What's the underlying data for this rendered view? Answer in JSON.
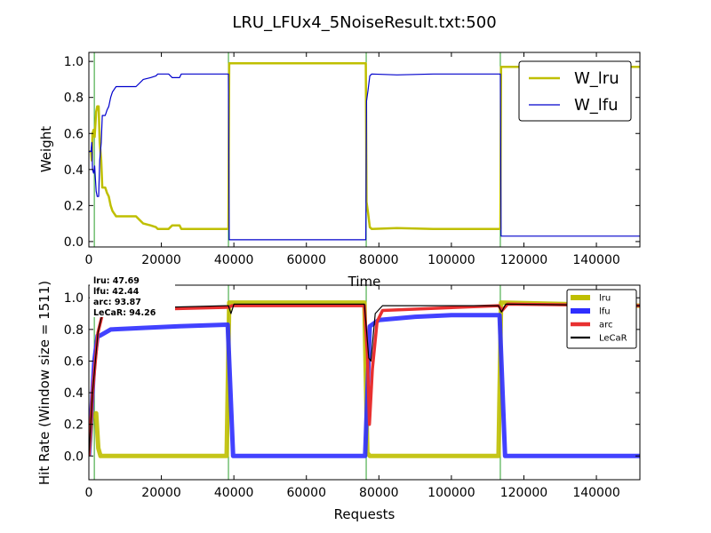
{
  "figure_title": "LRU_LFUx4_5NoiseResult.txt:500",
  "chart_data": [
    {
      "type": "line",
      "xlabel": "Time",
      "ylabel": "Weight",
      "xlim": [
        0,
        152000
      ],
      "ylim": [
        -0.03,
        1.05
      ],
      "xticks": [
        0,
        20000,
        40000,
        60000,
        80000,
        100000,
        120000,
        140000
      ],
      "xtick_labels": [
        "0",
        "20000",
        "40000",
        "60000",
        "80000",
        "100000",
        "120000",
        "140000"
      ],
      "yticks": [
        0.0,
        0.2,
        0.4,
        0.6,
        0.8,
        1.0
      ],
      "ytick_labels": [
        "0.0",
        "0.2",
        "0.4",
        "0.6",
        "0.8",
        "1.0"
      ],
      "grid": false,
      "legend_position": "top-right",
      "vlines": [
        1500,
        38500,
        76500,
        113500
      ],
      "vline_color": "#2ca02c",
      "series": [
        {
          "name": "W_lru",
          "color": "#bfbf00",
          "width": 2.5,
          "points": [
            [
              0,
              0.5
            ],
            [
              600,
              0.5
            ],
            [
              800,
              0.45
            ],
            [
              1000,
              0.6
            ],
            [
              1300,
              0.62
            ],
            [
              1600,
              0.58
            ],
            [
              2000,
              0.72
            ],
            [
              2300,
              0.75
            ],
            [
              2700,
              0.75
            ],
            [
              3000,
              0.55
            ],
            [
              3400,
              0.45
            ],
            [
              3700,
              0.3
            ],
            [
              4500,
              0.3
            ],
            [
              5000,
              0.27
            ],
            [
              5500,
              0.25
            ],
            [
              6000,
              0.2
            ],
            [
              6500,
              0.17
            ],
            [
              7500,
              0.14
            ],
            [
              10000,
              0.14
            ],
            [
              13000,
              0.14
            ],
            [
              14000,
              0.12
            ],
            [
              15000,
              0.1
            ],
            [
              17000,
              0.09
            ],
            [
              18500,
              0.08
            ],
            [
              19000,
              0.07
            ],
            [
              22000,
              0.07
            ],
            [
              23000,
              0.09
            ],
            [
              25000,
              0.09
            ],
            [
              25500,
              0.07
            ],
            [
              38500,
              0.07
            ],
            [
              38700,
              0.99
            ],
            [
              76400,
              0.99
            ],
            [
              76600,
              0.22
            ],
            [
              77000,
              0.16
            ],
            [
              77500,
              0.08
            ],
            [
              78000,
              0.07
            ],
            [
              85000,
              0.075
            ],
            [
              95000,
              0.07
            ],
            [
              113500,
              0.07
            ],
            [
              113700,
              0.97
            ],
            [
              152000,
              0.97
            ]
          ]
        },
        {
          "name": "W_lfu",
          "color": "#0000cc",
          "width": 1.2,
          "points": [
            [
              0,
              0.5
            ],
            [
              600,
              0.5
            ],
            [
              800,
              0.55
            ],
            [
              1000,
              0.4
            ],
            [
              1300,
              0.38
            ],
            [
              1600,
              0.42
            ],
            [
              2000,
              0.28
            ],
            [
              2300,
              0.25
            ],
            [
              2700,
              0.25
            ],
            [
              3000,
              0.45
            ],
            [
              3400,
              0.55
            ],
            [
              3700,
              0.7
            ],
            [
              4500,
              0.7
            ],
            [
              5000,
              0.73
            ],
            [
              5500,
              0.75
            ],
            [
              6000,
              0.8
            ],
            [
              6500,
              0.83
            ],
            [
              7500,
              0.86
            ],
            [
              10000,
              0.86
            ],
            [
              13000,
              0.86
            ],
            [
              14000,
              0.88
            ],
            [
              15000,
              0.9
            ],
            [
              17000,
              0.91
            ],
            [
              18500,
              0.92
            ],
            [
              19000,
              0.93
            ],
            [
              22000,
              0.93
            ],
            [
              23000,
              0.91
            ],
            [
              25000,
              0.91
            ],
            [
              25500,
              0.93
            ],
            [
              38500,
              0.93
            ],
            [
              38700,
              0.01
            ],
            [
              76400,
              0.01
            ],
            [
              76600,
              0.78
            ],
            [
              77000,
              0.84
            ],
            [
              77500,
              0.92
            ],
            [
              78000,
              0.93
            ],
            [
              85000,
              0.925
            ],
            [
              95000,
              0.93
            ],
            [
              113500,
              0.93
            ],
            [
              113700,
              0.03
            ],
            [
              152000,
              0.03
            ]
          ]
        }
      ]
    },
    {
      "type": "line",
      "xlabel": "Requests",
      "ylabel": "Hit Rate (Window size = 1511)",
      "xlim": [
        0,
        152000
      ],
      "ylim": [
        -0.15,
        1.08
      ],
      "xticks": [
        0,
        20000,
        40000,
        60000,
        80000,
        100000,
        120000,
        140000
      ],
      "xtick_labels": [
        "0",
        "20000",
        "40000",
        "60000",
        "80000",
        "100000",
        "120000",
        "140000"
      ],
      "yticks": [
        0.0,
        0.2,
        0.4,
        0.6,
        0.8,
        1.0
      ],
      "ytick_labels": [
        "0.0",
        "0.2",
        "0.4",
        "0.6",
        "0.8",
        "1.0"
      ],
      "grid": false,
      "legend_position": "top-right",
      "vlines": [
        1500,
        38500,
        76500,
        113500
      ],
      "vline_color": "#2ca02c",
      "stats_box": {
        "position": "top-left",
        "lines": [
          "lru:  47.69",
          "lfu:  42.44",
          "arc:  93.87",
          "LeCaR:  94.26"
        ]
      },
      "series": [
        {
          "name": "lru",
          "color": "#bfbf00",
          "width": 5,
          "points": [
            [
              0,
              0.0
            ],
            [
              800,
              0.25
            ],
            [
              2000,
              0.27
            ],
            [
              2600,
              0.05
            ],
            [
              3200,
              0.0
            ],
            [
              38000,
              0.0
            ],
            [
              38700,
              0.97
            ],
            [
              76000,
              0.97
            ],
            [
              76800,
              0.02
            ],
            [
              77500,
              0.0
            ],
            [
              113000,
              0.0
            ],
            [
              113700,
              0.97
            ],
            [
              152000,
              0.95
            ]
          ]
        },
        {
          "name": "lfu",
          "color": "#2e2eff",
          "width": 5,
          "points": [
            [
              0,
              0.0
            ],
            [
              1500,
              0.6
            ],
            [
              2400,
              0.76
            ],
            [
              3000,
              0.76
            ],
            [
              6000,
              0.8
            ],
            [
              15000,
              0.81
            ],
            [
              25000,
              0.82
            ],
            [
              38300,
              0.83
            ],
            [
              39800,
              0.0
            ],
            [
              76200,
              0.0
            ],
            [
              77500,
              0.82
            ],
            [
              80000,
              0.86
            ],
            [
              90000,
              0.88
            ],
            [
              100000,
              0.89
            ],
            [
              113300,
              0.89
            ],
            [
              114800,
              0.0
            ],
            [
              152000,
              0.0
            ]
          ]
        },
        {
          "name": "arc",
          "color": "#e83030",
          "width": 3.5,
          "points": [
            [
              0,
              0.0
            ],
            [
              1000,
              0.4
            ],
            [
              2500,
              0.78
            ],
            [
              4000,
              0.92
            ],
            [
              38500,
              0.94
            ],
            [
              39500,
              0.95
            ],
            [
              76000,
              0.95
            ],
            [
              76800,
              0.65
            ],
            [
              77400,
              0.2
            ],
            [
              78200,
              0.55
            ],
            [
              79500,
              0.85
            ],
            [
              81000,
              0.92
            ],
            [
              113000,
              0.95
            ],
            [
              114000,
              0.92
            ],
            [
              115500,
              0.96
            ],
            [
              152000,
              0.95
            ]
          ]
        },
        {
          "name": "LeCaR",
          "color": "#000000",
          "width": 1.2,
          "points": [
            [
              0,
              0.0
            ],
            [
              1000,
              0.4
            ],
            [
              2500,
              0.78
            ],
            [
              4000,
              0.93
            ],
            [
              38500,
              0.95
            ],
            [
              39200,
              0.9
            ],
            [
              40000,
              0.96
            ],
            [
              76000,
              0.96
            ],
            [
              77200,
              0.62
            ],
            [
              77800,
              0.6
            ],
            [
              79000,
              0.9
            ],
            [
              81000,
              0.95
            ],
            [
              113000,
              0.95
            ],
            [
              113800,
              0.91
            ],
            [
              115000,
              0.96
            ],
            [
              152000,
              0.95
            ]
          ]
        }
      ]
    }
  ]
}
